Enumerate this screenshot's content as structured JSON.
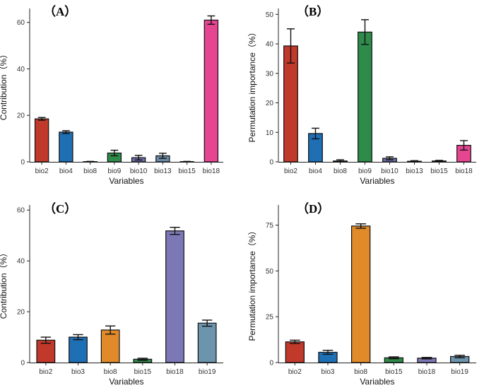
{
  "chart_data": [
    {
      "type": "bar",
      "panel_label": "（A）",
      "title": "",
      "xlabel": "Variables",
      "ylabel": "Contribution（%）",
      "categories": [
        "bio2",
        "bio4",
        "bio8",
        "bio9",
        "bio10",
        "bio13",
        "bio15",
        "bio18"
      ],
      "values": [
        18.5,
        12.8,
        0.1,
        3.8,
        1.8,
        2.6,
        0.1,
        61.0
      ],
      "errors": [
        0.6,
        0.6,
        0.1,
        1.2,
        1.0,
        1.1,
        0.1,
        1.8
      ],
      "colors": [
        "#c0392b",
        "#1f6fb4",
        "#1f3f7a",
        "#2e8b4a",
        "#6d6ea8",
        "#6a8aa6",
        "#6aa0b8",
        "#e64592"
      ],
      "ylim": [
        0,
        66
      ],
      "yticks": [
        0,
        20,
        40,
        60
      ]
    },
    {
      "type": "bar",
      "panel_label": "（B）",
      "title": "",
      "xlabel": "Variables",
      "ylabel": "Permutation importance（%）",
      "categories": [
        "bio2",
        "bio4",
        "bio8",
        "bio9",
        "bio10",
        "bio13",
        "bio15",
        "bio18"
      ],
      "values": [
        39.3,
        9.6,
        0.3,
        44.0,
        1.2,
        0.2,
        0.3,
        5.6
      ],
      "errors": [
        5.8,
        1.8,
        0.4,
        4.2,
        0.5,
        0.2,
        0.2,
        1.6
      ],
      "colors": [
        "#c0392b",
        "#1f6fb4",
        "#1f3f7a",
        "#2e8b4a",
        "#6d6ea8",
        "#6a8aa6",
        "#6aa0b8",
        "#e64592"
      ],
      "ylim": [
        0,
        52
      ],
      "yticks": [
        0,
        10,
        20,
        30,
        40,
        50
      ]
    },
    {
      "type": "bar",
      "panel_label": "（C）",
      "title": "",
      "xlabel": "Variables",
      "ylabel": "Contribution（%）",
      "categories": [
        "bio2",
        "bio3",
        "bio8",
        "bio15",
        "bio18",
        "bio19"
      ],
      "values": [
        8.8,
        10.0,
        12.8,
        1.3,
        51.8,
        15.5
      ],
      "errors": [
        1.2,
        1.0,
        1.6,
        0.4,
        1.4,
        1.2
      ],
      "colors": [
        "#c0392b",
        "#1f6fb4",
        "#e08a2a",
        "#2e8b4a",
        "#7b78b5",
        "#6d94ad"
      ],
      "ylim": [
        0,
        62
      ],
      "yticks": [
        0,
        20,
        40,
        60
      ]
    },
    {
      "type": "bar",
      "panel_label": "（D）",
      "title": "",
      "xlabel": "Variables",
      "ylabel": "Permutation importance（%）",
      "categories": [
        "bio2",
        "bio3",
        "bio8",
        "bio15",
        "bio18",
        "bio19"
      ],
      "values": [
        11.3,
        5.6,
        74.5,
        2.6,
        2.4,
        3.3
      ],
      "errors": [
        0.9,
        1.1,
        1.2,
        0.5,
        0.4,
        0.7
      ],
      "colors": [
        "#c0392b",
        "#1f6fb4",
        "#e08a2a",
        "#2e8b4a",
        "#7b78b5",
        "#6d94ad"
      ],
      "ylim": [
        0,
        86
      ],
      "yticks": [
        0,
        25,
        50,
        75
      ]
    }
  ]
}
